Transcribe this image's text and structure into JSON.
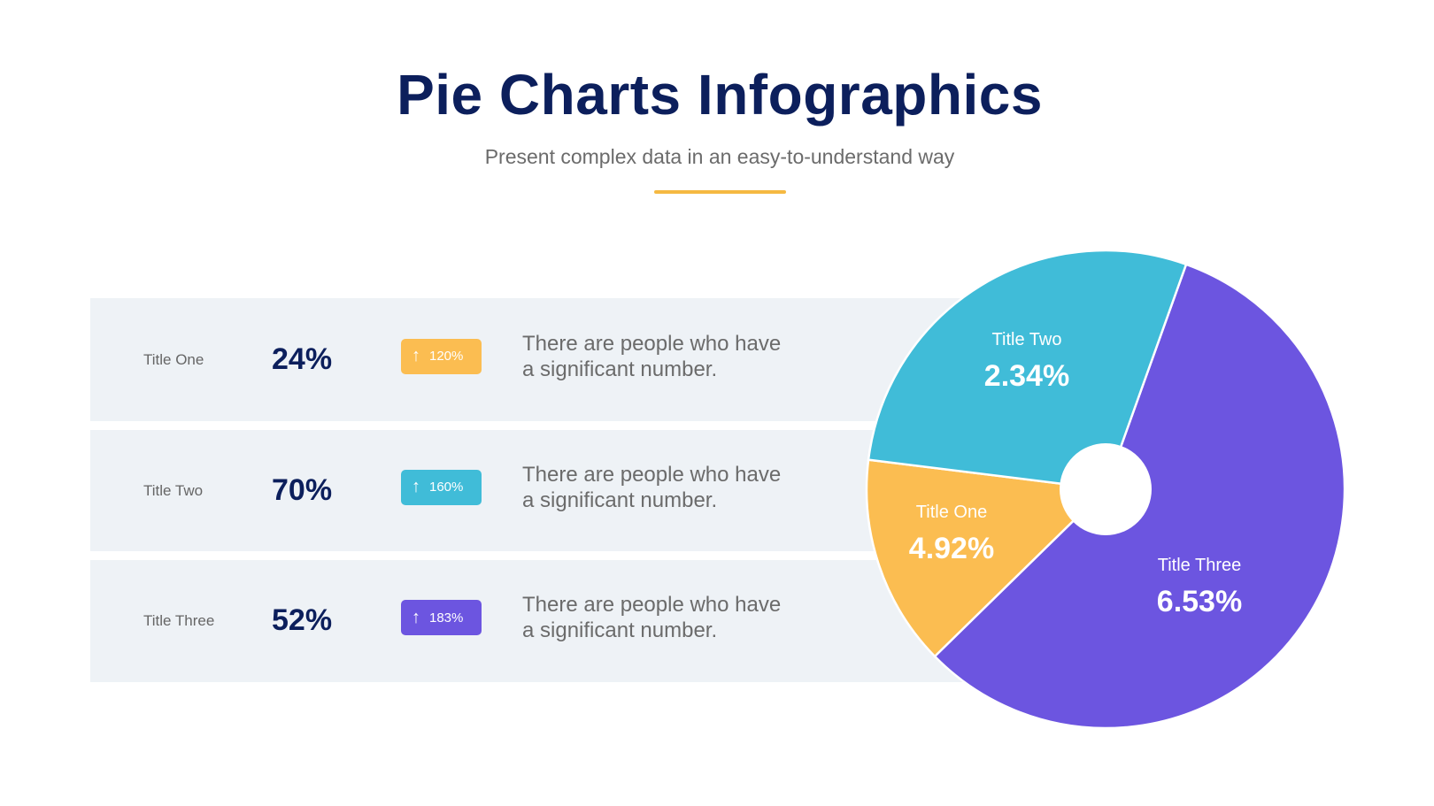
{
  "header": {
    "title": "Pie Charts Infographics",
    "subtitle": "Present complex data in an easy-to-understand way",
    "accent_color": "#f5b942"
  },
  "rows": [
    {
      "label": "Title One",
      "percent": "24%",
      "badge": "120%",
      "badge_icon": "arrow-up-icon",
      "color": "#fbbd51",
      "desc_line1": "There are people who have",
      "desc_line2": "a significant number."
    },
    {
      "label": "Title Two",
      "percent": "70%",
      "badge": "160%",
      "badge_icon": "arrow-up-icon",
      "color": "#40bcd8",
      "desc_line1": "There are people who have",
      "desc_line2": "a significant number."
    },
    {
      "label": "Title Three",
      "percent": "52%",
      "badge": "183%",
      "badge_icon": "arrow-up-icon",
      "color": "#6c55e0",
      "desc_line1": "There are people who have",
      "desc_line2": "a significant number."
    }
  ],
  "chart_data": {
    "type": "pie",
    "donut_hole": true,
    "categories": [
      "Title Three",
      "Title One",
      "Title Two"
    ],
    "labels": [
      "6.53%",
      "4.92%",
      "2.34%"
    ],
    "slice_shares_percent": [
      57.2,
      14.3,
      28.5
    ],
    "colors": [
      "#6c55e0",
      "#fbbd51",
      "#40bcd8"
    ],
    "legend": "none"
  }
}
